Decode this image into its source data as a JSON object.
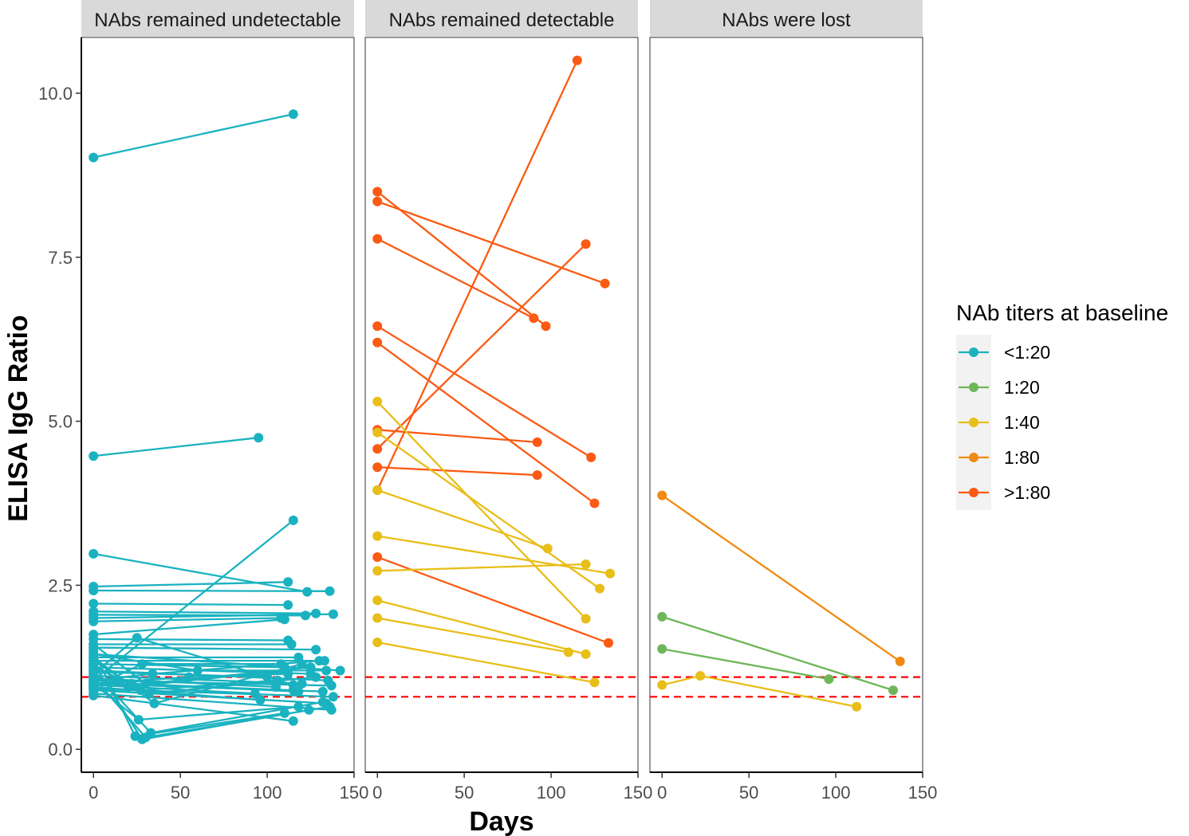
{
  "chart_data": {
    "type": "line",
    "ylabel": "ELISA IgG Ratio",
    "xlabel": "Days",
    "ylim": [
      -0.35,
      10.85
    ],
    "xlim": [
      -7,
      150
    ],
    "yticks": [
      0,
      2.5,
      5,
      7.5,
      10
    ],
    "ytick_labels": [
      "0.0",
      "2.5",
      "5.0",
      "7.5",
      "10.0"
    ],
    "xticks": [
      0,
      50,
      100,
      150
    ],
    "xtick_labels": [
      "0",
      "50",
      "100",
      "150"
    ],
    "reference_lines": [
      0.8,
      1.1
    ],
    "reference_line_color": "#ff0000",
    "legend": {
      "title": "NAb titers at baseline",
      "position": "right",
      "entries": [
        {
          "key": "lt20",
          "label": "<1:20",
          "color": "#1ab2c0"
        },
        {
          "key": "t20",
          "label": "1:20",
          "color": "#6fb65a"
        },
        {
          "key": "t40",
          "label": "1:40",
          "color": "#e8be18"
        },
        {
          "key": "t80",
          "label": "1:80",
          "color": "#f08a12"
        },
        {
          "key": "gt80",
          "label": ">1:80",
          "color": "#fb5a14"
        }
      ]
    },
    "panels": [
      {
        "title": "NAbs remained undetectable",
        "series": [
          {
            "group": "lt20",
            "points": [
              [
                0,
                9.02
              ],
              [
                115,
                9.68
              ]
            ]
          },
          {
            "group": "lt20",
            "points": [
              [
                0,
                4.47
              ],
              [
                95,
                4.75
              ]
            ]
          },
          {
            "group": "lt20",
            "points": [
              [
                0,
                1.05
              ],
              [
                115,
                3.49
              ]
            ]
          },
          {
            "group": "lt20",
            "points": [
              [
                0,
                2.98
              ],
              [
                123,
                2.4
              ]
            ]
          },
          {
            "group": "lt20",
            "points": [
              [
                0,
                2.48
              ],
              [
                112,
                2.55
              ]
            ]
          },
          {
            "group": "lt20",
            "points": [
              [
                0,
                2.42
              ],
              [
                136,
                2.41
              ]
            ]
          },
          {
            "group": "lt20",
            "points": [
              [
                0,
                2.22
              ],
              [
                112,
                2.2
              ]
            ]
          },
          {
            "group": "lt20",
            "points": [
              [
                0,
                2.1
              ],
              [
                128,
                2.07
              ]
            ]
          },
          {
            "group": "lt20",
            "points": [
              [
                0,
                2.05
              ],
              [
                122,
                2.04
              ]
            ]
          },
          {
            "group": "lt20",
            "points": [
              [
                0,
                2.0
              ],
              [
                138,
                2.06
              ]
            ]
          },
          {
            "group": "lt20",
            "points": [
              [
                0,
                1.95
              ],
              [
                108,
                2.0
              ]
            ]
          },
          {
            "group": "lt20",
            "points": [
              [
                0,
                1.75
              ],
              [
                110,
                1.98
              ]
            ]
          },
          {
            "group": "lt20",
            "points": [
              [
                0,
                1.68
              ],
              [
                112,
                1.66
              ]
            ]
          },
          {
            "group": "lt20",
            "points": [
              [
                0,
                1.6
              ],
              [
                114,
                1.6
              ]
            ]
          },
          {
            "group": "lt20",
            "points": [
              [
                0,
                1.55
              ],
              [
                128,
                1.52
              ]
            ]
          },
          {
            "group": "lt20",
            "points": [
              [
                0,
                1.45
              ],
              [
                142,
                1.2
              ]
            ]
          },
          {
            "group": "lt20",
            "points": [
              [
                0,
                1.4
              ],
              [
                118,
                1.4
              ]
            ]
          },
          {
            "group": "lt20",
            "points": [
              [
                0,
                1.35
              ],
              [
                133,
                1.35
              ]
            ]
          },
          {
            "group": "lt20",
            "points": [
              [
                0,
                1.3
              ],
              [
                110,
                1.25
              ]
            ]
          },
          {
            "group": "lt20",
            "points": [
              [
                0,
                1.25
              ],
              [
                125,
                1.15
              ]
            ]
          },
          {
            "group": "lt20",
            "points": [
              [
                0,
                1.2
              ],
              [
                135,
                1.05
              ]
            ]
          },
          {
            "group": "lt20",
            "points": [
              [
                0,
                1.18
              ],
              [
                100,
                1.1
              ]
            ]
          },
          {
            "group": "lt20",
            "points": [
              [
                0,
                1.12
              ],
              [
                120,
                1.0
              ]
            ]
          },
          {
            "group": "lt20",
            "points": [
              [
                0,
                1.08
              ],
              [
                105,
                0.95
              ]
            ]
          },
          {
            "group": "lt20",
            "points": [
              [
                0,
                1.05
              ],
              [
                137,
                0.97
              ]
            ]
          },
          {
            "group": "lt20",
            "points": [
              [
                0,
                1.02
              ],
              [
                115,
                0.9
              ]
            ]
          },
          {
            "group": "lt20",
            "points": [
              [
                0,
                1.0
              ],
              [
                132,
                0.88
              ]
            ]
          },
          {
            "group": "lt20",
            "points": [
              [
                0,
                0.98
              ],
              [
                93,
                0.85
              ]
            ]
          },
          {
            "group": "lt20",
            "points": [
              [
                0,
                0.95
              ],
              [
                96,
                0.75
              ]
            ]
          },
          {
            "group": "lt20",
            "points": [
              [
                0,
                0.92
              ],
              [
                138,
                0.8
              ]
            ]
          },
          {
            "group": "lt20",
            "points": [
              [
                0,
                0.9
              ],
              [
                134,
                0.7
              ]
            ]
          },
          {
            "group": "lt20",
            "points": [
              [
                0,
                0.85
              ],
              [
                137,
                0.6
              ]
            ]
          },
          {
            "group": "lt20",
            "points": [
              [
                0,
                0.82
              ],
              [
                115,
                0.43
              ]
            ]
          },
          {
            "group": "lt20",
            "points": [
              [
                0,
                1.5
              ],
              [
                24,
                0.2
              ],
              [
                110,
                0.55
              ]
            ]
          },
          {
            "group": "lt20",
            "points": [
              [
                0,
                1.3
              ],
              [
                28,
                0.15
              ],
              [
                124,
                0.6
              ]
            ]
          },
          {
            "group": "lt20",
            "points": [
              [
                0,
                1.1
              ],
              [
                30,
                0.18
              ],
              [
                136,
                0.65
              ]
            ]
          },
          {
            "group": "lt20",
            "points": [
              [
                0,
                1.2
              ],
              [
                33,
                0.25
              ],
              [
                132,
                0.72
              ]
            ]
          },
          {
            "group": "lt20",
            "points": [
              [
                0,
                1.0
              ],
              [
                26,
                0.45
              ],
              [
                118,
                0.65
              ]
            ]
          },
          {
            "group": "lt20",
            "points": [
              [
                0,
                1.4
              ],
              [
                35,
                0.7
              ],
              [
                120,
                1.3
              ]
            ]
          },
          {
            "group": "lt20",
            "points": [
              [
                0,
                1.6
              ],
              [
                30,
                1.0
              ],
              [
                125,
                1.25
              ]
            ]
          },
          {
            "group": "lt20",
            "points": [
              [
                0,
                1.3
              ],
              [
                20,
                0.95
              ],
              [
                110,
                1.2
              ]
            ]
          },
          {
            "group": "lt20",
            "points": [
              [
                0,
                1.15
              ],
              [
                25,
                1.7
              ],
              [
                115,
                0.98
              ]
            ]
          },
          {
            "group": "lt20",
            "points": [
              [
                0,
                0.95
              ],
              [
                28,
                1.3
              ],
              [
                108,
                1.3
              ]
            ]
          },
          {
            "group": "lt20",
            "points": [
              [
                0,
                1.1
              ],
              [
                32,
                0.85
              ],
              [
                128,
                1.1
              ]
            ]
          },
          {
            "group": "lt20",
            "points": [
              [
                0,
                1.25
              ],
              [
                22,
                1.0
              ],
              [
                118,
                0.88
              ]
            ]
          },
          {
            "group": "lt20",
            "points": [
              [
                0,
                1.05
              ],
              [
                34,
                1.15
              ],
              [
                130,
                1.35
              ]
            ]
          },
          {
            "group": "lt20",
            "points": [
              [
                0,
                1.35
              ],
              [
                27,
                0.9
              ],
              [
                106,
                1.05
              ]
            ]
          },
          {
            "group": "lt20",
            "points": [
              [
                0,
                1.45
              ],
              [
                60,
                1.2
              ],
              [
                134,
                1.2
              ]
            ]
          },
          {
            "group": "lt20",
            "points": [
              [
                0,
                1.0
              ],
              [
                55,
                1.1
              ],
              [
                112,
                1.15
              ]
            ]
          }
        ]
      },
      {
        "title": "NAbs remained detectable",
        "series": [
          {
            "group": "gt80",
            "points": [
              [
                0,
                3.95
              ],
              [
                115,
                10.5
              ]
            ]
          },
          {
            "group": "gt80",
            "points": [
              [
                0,
                8.5
              ],
              [
                97,
                6.45
              ]
            ]
          },
          {
            "group": "gt80",
            "points": [
              [
                0,
                8.35
              ],
              [
                131,
                7.1
              ]
            ]
          },
          {
            "group": "gt80",
            "points": [
              [
                0,
                7.78
              ],
              [
                90,
                6.57
              ]
            ]
          },
          {
            "group": "gt80",
            "points": [
              [
                0,
                6.45
              ],
              [
                123,
                4.45
              ]
            ]
          },
          {
            "group": "gt80",
            "points": [
              [
                0,
                6.2
              ],
              [
                125,
                3.75
              ]
            ]
          },
          {
            "group": "gt80",
            "points": [
              [
                0,
                4.87
              ],
              [
                92,
                4.68
              ]
            ]
          },
          {
            "group": "gt80",
            "points": [
              [
                0,
                4.58
              ],
              [
                120,
                7.7
              ]
            ]
          },
          {
            "group": "gt80",
            "points": [
              [
                0,
                4.3
              ],
              [
                92,
                4.18
              ]
            ]
          },
          {
            "group": "gt80",
            "points": [
              [
                0,
                2.93
              ],
              [
                133,
                1.62
              ]
            ]
          },
          {
            "group": "t40",
            "points": [
              [
                0,
                5.3
              ],
              [
                120,
                1.99
              ]
            ]
          },
          {
            "group": "t40",
            "points": [
              [
                0,
                4.83
              ],
              [
                128,
                2.45
              ]
            ]
          },
          {
            "group": "t40",
            "points": [
              [
                0,
                3.95
              ],
              [
                98,
                3.06
              ]
            ]
          },
          {
            "group": "t40",
            "points": [
              [
                0,
                3.25
              ],
              [
                134,
                2.68
              ]
            ]
          },
          {
            "group": "t40",
            "points": [
              [
                0,
                2.72
              ],
              [
                120,
                2.82
              ]
            ]
          },
          {
            "group": "t40",
            "points": [
              [
                0,
                2.27
              ],
              [
                120,
                1.45
              ]
            ]
          },
          {
            "group": "t40",
            "points": [
              [
                0,
                2.0
              ],
              [
                110,
                1.48
              ]
            ]
          },
          {
            "group": "t40",
            "points": [
              [
                0,
                1.63
              ],
              [
                125,
                1.02
              ]
            ]
          }
        ]
      },
      {
        "title": "NAbs were lost",
        "series": [
          {
            "group": "t80",
            "points": [
              [
                0,
                3.87
              ],
              [
                137,
                1.34
              ]
            ]
          },
          {
            "group": "t20",
            "points": [
              [
                0,
                2.02
              ],
              [
                133,
                0.9
              ]
            ]
          },
          {
            "group": "t20",
            "points": [
              [
                0,
                1.53
              ],
              [
                96,
                1.07
              ]
            ]
          },
          {
            "group": "t40",
            "points": [
              [
                0,
                0.98
              ],
              [
                22,
                1.12
              ],
              [
                112,
                0.65
              ]
            ]
          }
        ]
      }
    ]
  }
}
